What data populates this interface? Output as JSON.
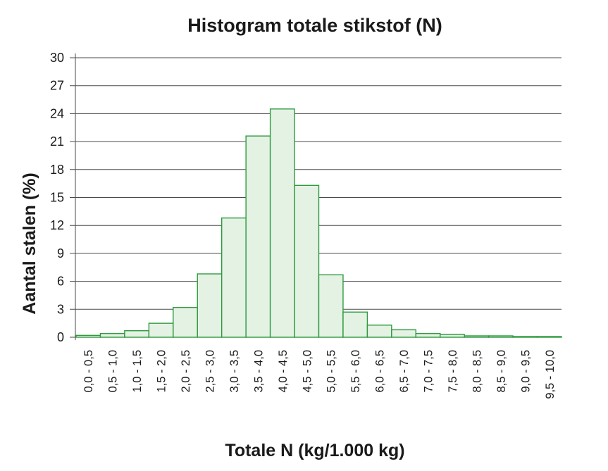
{
  "chart_data": {
    "type": "bar",
    "title": "Histogram totale stikstof (N)",
    "xlabel": "Totale N (kg/1.000 kg)",
    "ylabel": "Aantal stalen (%)",
    "ylim": [
      0,
      30
    ],
    "yticks": [
      0,
      3,
      6,
      9,
      12,
      15,
      18,
      21,
      24,
      27,
      30
    ],
    "grid": true,
    "colors": {
      "bar_fill": "#e4f2e4",
      "bar_stroke": "#2e9a3e",
      "grid": "#4a4a4a"
    },
    "categories": [
      "0,0 - 0,5",
      "0,5 - 1,0",
      "1,0 - 1,5",
      "1,5 - 2,0",
      "2,0 - 2,5",
      "2,5 - 3,0",
      "3,0 - 3,5",
      "3,5 - 4,0",
      "4,0 - 4,5",
      "4,5 - 5,0",
      "5,0 - 5,5",
      "5,5 - 6,0",
      "6,0 - 6,5",
      "6,5 - 7,0",
      "7,0 - 7,5",
      "7,5 - 8,0",
      "8,0 - 8,5",
      "8,5 - 9,0",
      "9,0 - 9,5",
      "9,5 - 10,0"
    ],
    "values": [
      0.2,
      0.4,
      0.7,
      1.5,
      3.2,
      6.8,
      12.8,
      21.6,
      24.5,
      16.3,
      6.7,
      2.7,
      1.3,
      0.8,
      0.4,
      0.3,
      0.15,
      0.15,
      0.05,
      0.05
    ]
  }
}
